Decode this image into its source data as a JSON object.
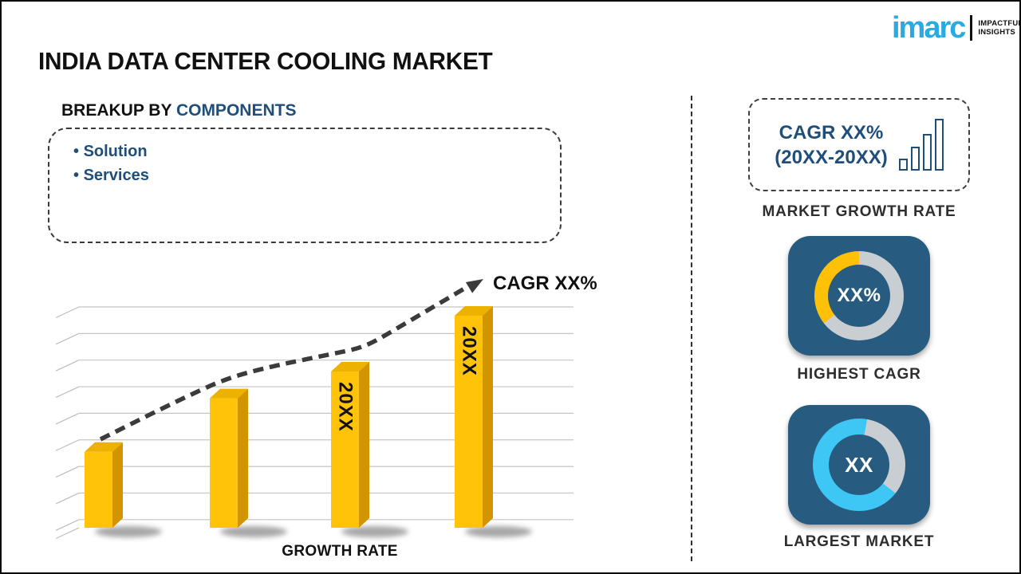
{
  "page": {
    "title": "INDIA DATA CENTER COOLING MARKET"
  },
  "logo": {
    "brand": "imarc",
    "tagline": [
      "IMPACTFUL",
      "INSIGHTS"
    ],
    "brand_color": "#29ABE2"
  },
  "breakup": {
    "prefix": "BREAKUP BY ",
    "highlight": "COMPONENTS",
    "items": [
      "Solution",
      "Services"
    ]
  },
  "chart_data": {
    "type": "bar",
    "title": "INDIA DATA CENTER COOLING MARKET",
    "xlabel": "GROWTH RATE",
    "ylabel": "",
    "categories": [
      "20XX",
      "20XX",
      "20XX",
      "20XX"
    ],
    "values": [
      34,
      58,
      70,
      95
    ],
    "bar_labels": [
      "",
      "",
      "20XX",
      "20XX"
    ],
    "ylim": [
      0,
      100
    ],
    "gridlines": 9,
    "grid_on": true,
    "trend_annotation": "CAGR XX%",
    "trend_style": "dashed-arrow",
    "bar_color_front": "#FFC40A",
    "bar_color_top": "#EDB100",
    "bar_color_side": "#D29500",
    "note": "placeholder infographic chart; bar values estimated from relative pixel heights, no numeric axis shown"
  },
  "chart": {
    "cagr_label": "CAGR XX%",
    "xlabel": "GROWTH RATE"
  },
  "panel": {
    "growth_box": {
      "line1": "CAGR XX%",
      "line2": "(20XX-20XX)"
    },
    "captions": {
      "growth": "MARKET GROWTH RATE",
      "cagr": "HIGHEST CAGR",
      "market": "LARGEST MARKET"
    },
    "donut_cagr": {
      "value": "XX%",
      "segments": [
        {
          "color": "#C9CED3",
          "from": 0,
          "to": 232
        },
        {
          "color": "#FFC008",
          "from": 232,
          "to": 360
        }
      ]
    },
    "donut_market": {
      "value": "XX",
      "segments": [
        {
          "color": "#3EC6F4",
          "from": 0,
          "to": 10
        },
        {
          "color": "#C9CED3",
          "from": 10,
          "to": 128
        },
        {
          "color": "#3EC6F4",
          "from": 128,
          "to": 360
        }
      ]
    },
    "card_bg": "#275C80"
  }
}
